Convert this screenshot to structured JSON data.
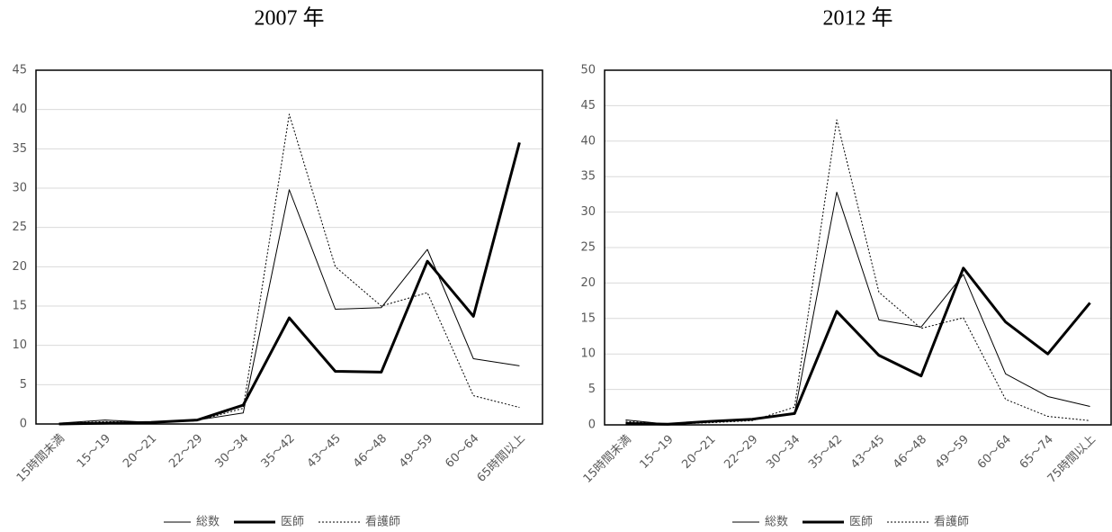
{
  "chart_data": [
    {
      "type": "line",
      "title": "2007 年",
      "categories": [
        "15時間未満",
        "15～19",
        "20～21",
        "22～29",
        "30～34",
        "35～42",
        "43～45",
        "46～48",
        "49～59",
        "60～64",
        "65時間以上"
      ],
      "series": [
        {
          "name": "総数",
          "color": "#000000",
          "width": 1,
          "dash": "none",
          "values": [
            0.1,
            0.5,
            0.2,
            0.5,
            1.4,
            29.8,
            14.6,
            14.8,
            22.2,
            8.3,
            7.4
          ]
        },
        {
          "name": "医師",
          "color": "#000000",
          "width": 3,
          "dash": "none",
          "values": [
            0.0,
            0.1,
            0.2,
            0.5,
            2.4,
            13.5,
            6.7,
            6.6,
            20.7,
            13.7,
            35.8
          ]
        },
        {
          "name": "看護師",
          "color": "#000000",
          "width": 1,
          "dash": "2,2",
          "values": [
            0.1,
            0.3,
            0.2,
            0.4,
            2.0,
            39.4,
            20.0,
            15.0,
            16.7,
            3.6,
            2.1
          ]
        }
      ],
      "ylim": [
        0,
        45
      ],
      "yticks": [
        0,
        5,
        10,
        15,
        20,
        25,
        30,
        35,
        40,
        45
      ],
      "grid": true
    },
    {
      "type": "line",
      "title": "2012 年",
      "categories": [
        "15時間未満",
        "15～19",
        "20～21",
        "22～29",
        "30～34",
        "35～42",
        "43～45",
        "46～48",
        "49～59",
        "60～64",
        "65～74",
        "75時間以上"
      ],
      "series": [
        {
          "name": "総数",
          "color": "#000000",
          "width": 1,
          "dash": "none",
          "values": [
            0.7,
            0.1,
            0.4,
            0.7,
            1.6,
            32.8,
            14.8,
            13.8,
            21.2,
            7.2,
            4.0,
            2.6
          ]
        },
        {
          "name": "医師",
          "color": "#000000",
          "width": 3,
          "dash": "none",
          "values": [
            0.2,
            0.1,
            0.5,
            0.8,
            1.6,
            16.0,
            9.8,
            6.9,
            22.1,
            14.5,
            10.0,
            17.2
          ]
        },
        {
          "name": "看護師",
          "color": "#000000",
          "width": 1,
          "dash": "2,2",
          "values": [
            0.5,
            0.1,
            0.3,
            0.6,
            2.5,
            43.0,
            18.7,
            13.6,
            15.1,
            3.6,
            1.2,
            0.6
          ]
        }
      ],
      "ylim": [
        0,
        50
      ],
      "yticks": [
        0,
        5,
        10,
        15,
        20,
        25,
        30,
        35,
        40,
        45,
        50
      ],
      "grid": true
    }
  ]
}
